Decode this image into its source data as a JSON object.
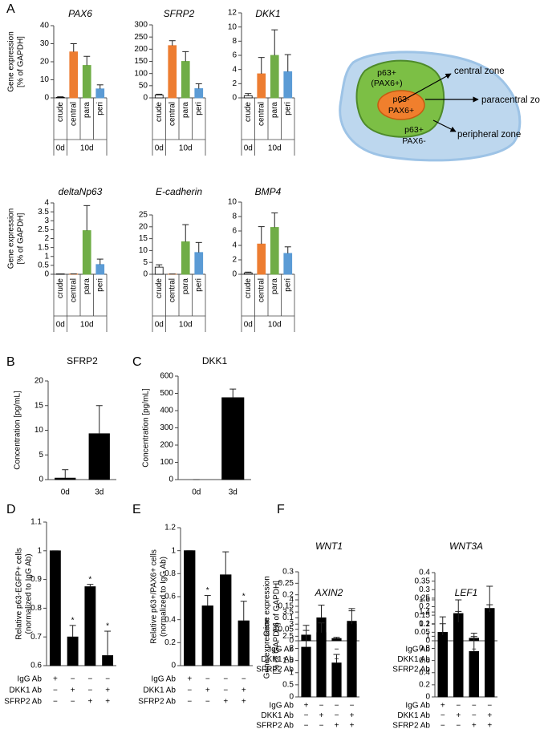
{
  "chart_data": [
    {
      "type": "bar",
      "panel": "A",
      "title": "PAX6",
      "title_italic": true,
      "ylabel": [
        "Gene expression",
        "[% of GAPDH]"
      ],
      "categories": [
        "crude",
        "central",
        "para",
        "peri"
      ],
      "groups": [
        {
          "label": "0d",
          "size": 1
        },
        {
          "label": "10d",
          "size": 3
        }
      ],
      "values": [
        0.3,
        25.5,
        18,
        5
      ],
      "errors": [
        0.3,
        4.5,
        5,
        2.2
      ],
      "colors": [
        "#ffffff",
        "#ed7d31",
        "#70ad47",
        "#5b9bd5"
      ],
      "ylim": [
        0,
        40
      ],
      "yticks": [
        0,
        10,
        20,
        30,
        40
      ]
    },
    {
      "type": "bar",
      "title": "SFRP2",
      "title_italic": true,
      "categories": [
        "crude",
        "central",
        "para",
        "peri"
      ],
      "groups": [
        {
          "label": "0d",
          "size": 1
        },
        {
          "label": "10d",
          "size": 3
        }
      ],
      "values": [
        12,
        215,
        150,
        38
      ],
      "errors": [
        3,
        20,
        40,
        20
      ],
      "colors": [
        "#ffffff",
        "#ed7d31",
        "#70ad47",
        "#5b9bd5"
      ],
      "ylim": [
        0,
        300
      ],
      "yticks": [
        0,
        50,
        100,
        150,
        200,
        250,
        300
      ]
    },
    {
      "type": "bar",
      "title": "DKK1",
      "title_italic": true,
      "categories": [
        "crude",
        "central",
        "para",
        "peri"
      ],
      "groups": [
        {
          "label": "0d",
          "size": 1
        },
        {
          "label": "10d",
          "size": 3
        }
      ],
      "values": [
        0.3,
        3.4,
        6,
        3.7
      ],
      "errors": [
        0.3,
        2.3,
        3.6,
        2.4
      ],
      "colors": [
        "#ffffff",
        "#ed7d31",
        "#70ad47",
        "#5b9bd5"
      ],
      "ylim": [
        0,
        12
      ],
      "yticks": [
        0,
        2,
        4,
        6,
        8,
        10,
        12
      ]
    },
    {
      "type": "bar",
      "title": "deltaNp63",
      "title_italic": true,
      "ylabel": [
        "Gene expression",
        "[% of GAPDH]"
      ],
      "categories": [
        "crude",
        "central",
        "para",
        "peri"
      ],
      "groups": [
        {
          "label": "0d",
          "size": 1
        },
        {
          "label": "10d",
          "size": 3
        }
      ],
      "values": [
        0.02,
        0.02,
        2.45,
        0.55
      ],
      "errors": [
        0,
        0,
        1.4,
        0.3
      ],
      "colors": [
        "#ffffff",
        "#ed7d31",
        "#70ad47",
        "#5b9bd5"
      ],
      "ylim": [
        0,
        4
      ],
      "yticks": [
        0,
        0.5,
        1,
        1.5,
        2,
        2.5,
        3,
        3.5,
        4
      ]
    },
    {
      "type": "bar",
      "title": "E-cadherin",
      "title_italic": true,
      "categories": [
        "crude",
        "central",
        "para",
        "peri"
      ],
      "groups": [
        {
          "label": "0d",
          "size": 1
        },
        {
          "label": "10d",
          "size": 3
        }
      ],
      "values": [
        3,
        0.1,
        13.7,
        9.2
      ],
      "errors": [
        1,
        0,
        7.2,
        4.2
      ],
      "colors": [
        "#ffffff",
        "#ed7d31",
        "#70ad47",
        "#5b9bd5"
      ],
      "ylim": [
        0,
        25
      ],
      "yticks": [
        0,
        5,
        10,
        15,
        20,
        25
      ]
    },
    {
      "type": "bar",
      "title": "BMP4",
      "title_italic": true,
      "categories": [
        "crude",
        "central",
        "para",
        "peri"
      ],
      "groups": [
        {
          "label": "0d",
          "size": 1
        },
        {
          "label": "10d",
          "size": 3
        }
      ],
      "values": [
        0.2,
        4.2,
        6.5,
        2.9
      ],
      "errors": [
        0.1,
        2.4,
        2,
        0.9
      ],
      "colors": [
        "#ffffff",
        "#ed7d31",
        "#70ad47",
        "#5b9bd5"
      ],
      "ylim": [
        0,
        10
      ],
      "yticks": [
        0,
        2,
        4,
        6,
        8,
        10
      ]
    },
    {
      "type": "bar",
      "panel": "B",
      "title": "SFRP2",
      "ylabel": [
        "Concentration [pg/mL]"
      ],
      "categories": [
        "0d",
        "3d"
      ],
      "values": [
        0.3,
        9.3
      ],
      "errors": [
        1.7,
        5.7
      ],
      "color": "#000000",
      "ylim": [
        0,
        20
      ],
      "yticks": [
        0,
        5,
        10,
        15,
        20
      ]
    },
    {
      "type": "bar",
      "panel": "C",
      "title": "DKK1",
      "ylabel": [
        "Concentration [pg/mL]"
      ],
      "categories": [
        "0d",
        "3d"
      ],
      "values": [
        0,
        475
      ],
      "errors": [
        0,
        50
      ],
      "color": "#000000",
      "ylim": [
        0,
        600
      ],
      "yticks": [
        0,
        100,
        200,
        300,
        400,
        500,
        600
      ]
    },
    {
      "type": "bar",
      "panel": "D",
      "ylabel": [
        "Relative p63-EGFP+ cells",
        "(normalized to IgG Ab)"
      ],
      "values": [
        1,
        0.7,
        0.875,
        0.635
      ],
      "errors": [
        0,
        0.04,
        0.008,
        0.085
      ],
      "annotations": [
        null,
        "*",
        "*",
        "*"
      ],
      "color": "#000000",
      "conditions": [
        {
          "label": "IgG Ab",
          "marks": [
            "+",
            "−",
            "−",
            "−"
          ]
        },
        {
          "label": "DKK1 Ab",
          "marks": [
            "−",
            "+",
            "−",
            "+"
          ]
        },
        {
          "label": "SFRP2 Ab",
          "marks": [
            "−",
            "−",
            "+",
            "+"
          ]
        }
      ],
      "ylim": [
        0.6,
        1.1
      ],
      "yticks": [
        0.6,
        0.7,
        0.8,
        0.9,
        1,
        1.1
      ]
    },
    {
      "type": "bar",
      "panel": "E",
      "ylabel": [
        "Relative p63+/PAX6+ cells",
        "(normalized to IgG Ab)"
      ],
      "values": [
        1,
        0.52,
        0.79,
        0.39
      ],
      "errors": [
        0,
        0.09,
        0.2,
        0.17
      ],
      "annotations": [
        null,
        "*",
        null,
        "*"
      ],
      "color": "#000000",
      "conditions": [
        {
          "label": "IgG Ab",
          "marks": [
            "+",
            "−",
            "−",
            "−"
          ]
        },
        {
          "label": "DKK1 Ab",
          "marks": [
            "−",
            "+",
            "−",
            "+"
          ]
        },
        {
          "label": "SFRP2 Ab",
          "marks": [
            "−",
            "−",
            "+",
            "+"
          ]
        }
      ],
      "ylim": [
        0,
        1.2
      ],
      "yticks": [
        0,
        0.2,
        0.4,
        0.6,
        0.8,
        1,
        1.2
      ]
    },
    {
      "type": "bar",
      "panel": "F",
      "title": "WNT1",
      "title_italic": true,
      "ylabel": [
        "Gene expression",
        "[% of GAPDH]"
      ],
      "values": [
        0.025,
        0.1,
        0.01,
        0.085
      ],
      "errors": [
        0.02,
        0.055,
        0.005,
        0.055
      ],
      "color": "#000000",
      "conditions": [
        {
          "label": "IgG Ab",
          "marks": [
            "+",
            "−",
            "−",
            "−"
          ]
        },
        {
          "label": "DKK1 Ab",
          "marks": [
            "−",
            "+",
            "−",
            "+"
          ]
        },
        {
          "label": "SFRP2 Ab",
          "marks": [
            "−",
            "−",
            "+",
            "+"
          ]
        }
      ],
      "ylim": [
        0,
        0.3
      ],
      "yticks": [
        0,
        0.05,
        0.1,
        0.15,
        0.2,
        0.25,
        0.3
      ]
    },
    {
      "type": "bar",
      "title": "WNT3A",
      "title_italic": true,
      "values": [
        0.05,
        0.16,
        0.015,
        0.19
      ],
      "errors": [
        0.05,
        0.08,
        0.01,
        0.13
      ],
      "color": "#000000",
      "conditions": [
        {
          "label": "IgG Ab",
          "marks": [
            "+",
            "−",
            "−",
            "−"
          ]
        },
        {
          "label": "DKK1 Ab",
          "marks": [
            "−",
            "+",
            "−",
            "+"
          ]
        },
        {
          "label": "SFRP2 Ab",
          "marks": [
            "−",
            "−",
            "+",
            "+"
          ]
        }
      ],
      "ylim": [
        0,
        0.4
      ],
      "yticks": [
        0,
        0.05,
        0.1,
        0.15,
        0.2,
        0.25,
        0.3,
        0.35,
        0.4
      ]
    },
    {
      "type": "bar",
      "title": "AXIN2",
      "title_italic": true,
      "ylabel": [
        "Gene expression",
        "[% of GAPDH]"
      ],
      "values": [
        2.05,
        2.65,
        1.4,
        3
      ],
      "errors": [
        0.9,
        0.4,
        0.35,
        0.55
      ],
      "color": "#000000",
      "conditions": [
        {
          "label": "IgG Ab",
          "marks": [
            "+",
            "−",
            "−",
            "−"
          ]
        },
        {
          "label": "DKK1 Ab",
          "marks": [
            "−",
            "+",
            "−",
            "+"
          ]
        },
        {
          "label": "SFRP2 Ab",
          "marks": [
            "−",
            "−",
            "+",
            "+"
          ]
        }
      ],
      "ylim": [
        0,
        4
      ],
      "yticks": [
        0,
        0.5,
        1,
        1.5,
        2,
        2.5,
        3,
        3.5,
        4
      ]
    },
    {
      "type": "bar",
      "title": "LEF1",
      "title_italic": true,
      "values": [
        1.02,
        1.23,
        0.75,
        1.4
      ],
      "errors": [
        0.3,
        0.18,
        0.3,
        0.12
      ],
      "color": "#000000",
      "conditions": [
        {
          "label": "IgG Ab",
          "marks": [
            "+",
            "−",
            "−",
            "−"
          ]
        },
        {
          "label": "DKK1 Ab",
          "marks": [
            "−",
            "+",
            "−",
            "+"
          ]
        },
        {
          "label": "SFRP2 Ab",
          "marks": [
            "−",
            "−",
            "+",
            "+"
          ]
        }
      ],
      "ylim": [
        0,
        1.6
      ],
      "yticks": [
        0,
        0.2,
        0.4,
        0.6,
        0.8,
        1,
        1.2,
        1.4,
        1.6
      ]
    }
  ],
  "diagram": {
    "regions": [
      {
        "lines": [
          "p63+",
          "(PAX6+)"
        ]
      },
      {
        "lines": [
          "p63-",
          "PAX6+"
        ]
      },
      {
        "lines": [
          "p63+",
          "PAX6-"
        ]
      }
    ],
    "zones": [
      "central zone",
      "paracentral zone",
      "peripheral zone"
    ]
  }
}
